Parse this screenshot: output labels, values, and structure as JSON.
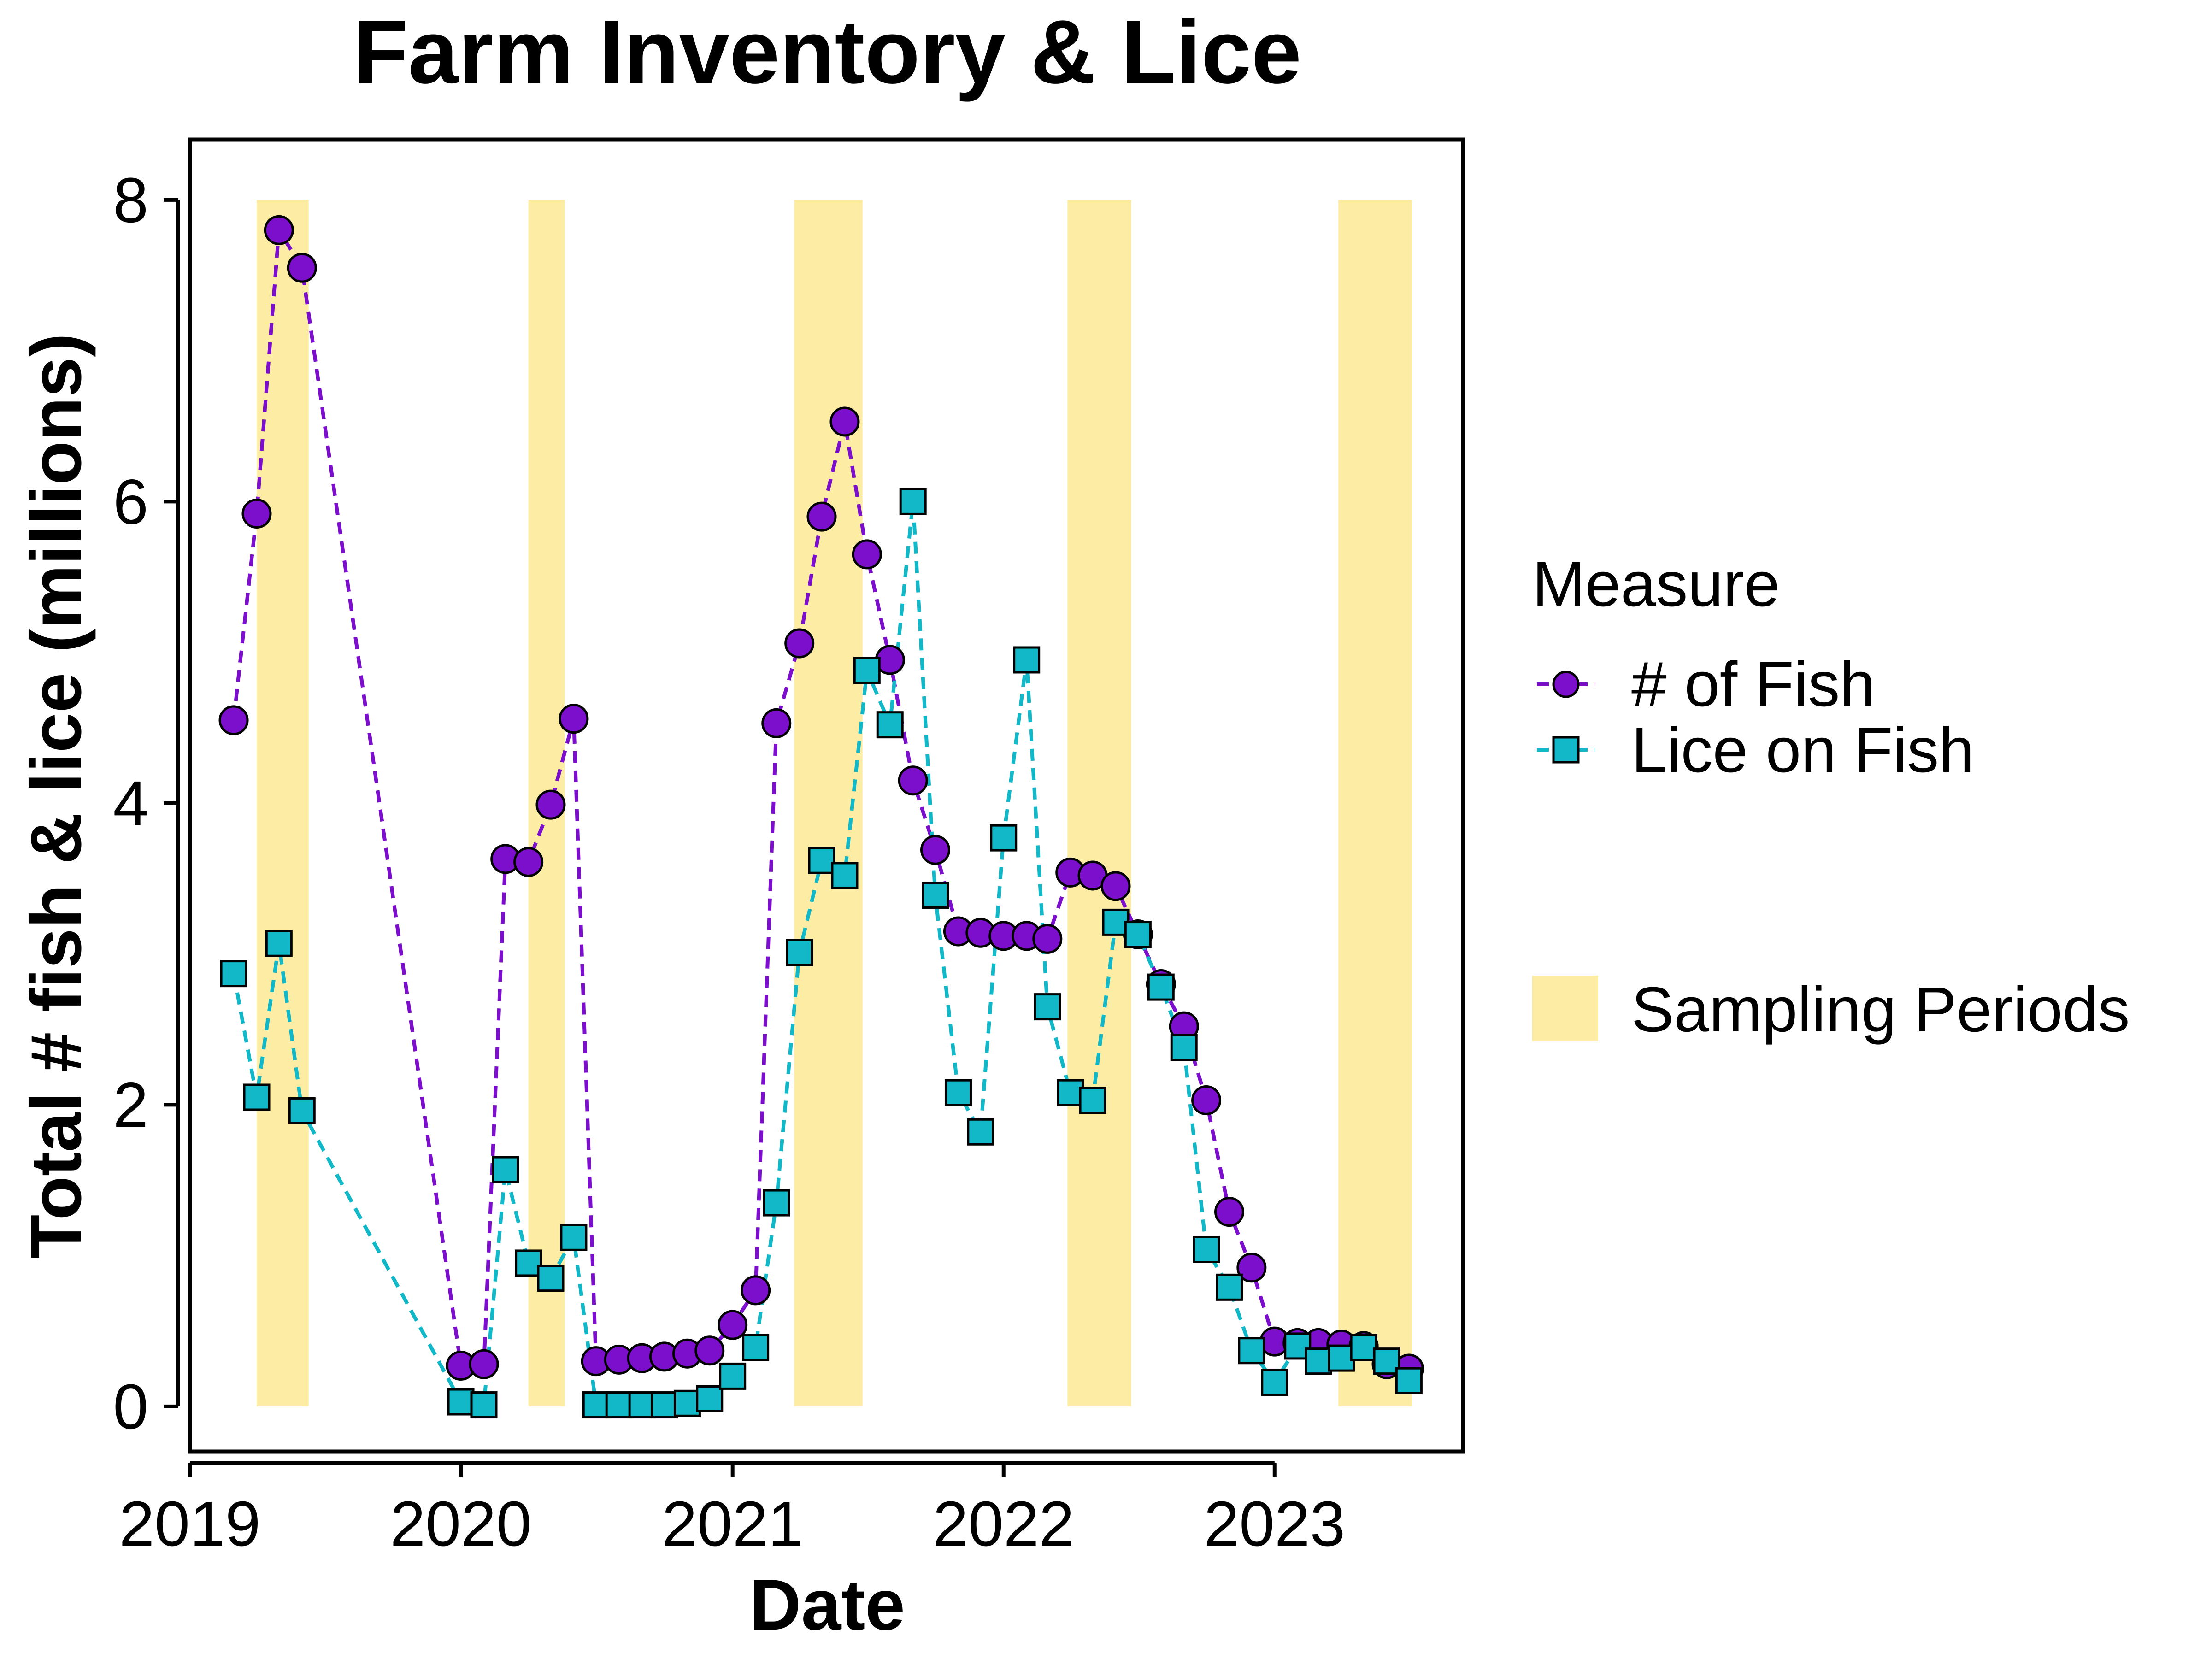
{
  "chart_data": {
    "type": "line",
    "title": "Farm Inventory & Lice",
    "xlabel": "Date",
    "ylabel": "Total # fish & lice (millions)",
    "xlim": [
      "2019-01-01",
      "2023-09-12"
    ],
    "ylim": [
      -0.3,
      8.4
    ],
    "x_ticks": [
      "2019",
      "2020",
      "2021",
      "2022",
      "2023"
    ],
    "y_ticks": [
      0,
      2,
      4,
      6,
      8
    ],
    "grid": false,
    "legend": {
      "position": "right",
      "title": "Measure",
      "band_label": "Sampling Periods"
    },
    "sampling_periods": [
      [
        "2019-04-01",
        "2019-06-10"
      ],
      [
        "2020-04-01",
        "2020-05-20"
      ],
      [
        "2021-03-25",
        "2021-06-25"
      ],
      [
        "2022-03-28",
        "2022-06-22"
      ],
      [
        "2023-03-28",
        "2023-07-05"
      ]
    ],
    "series": [
      {
        "name": "# of Fish",
        "color": "#7B0FCC",
        "marker": "circle",
        "points": [
          [
            "2019-03-01",
            4.55
          ],
          [
            "2019-04-01",
            5.92
          ],
          [
            "2019-05-01",
            7.8
          ],
          [
            "2019-06-01",
            7.55
          ],
          [
            "2020-01-01",
            0.27
          ],
          [
            "2020-02-01",
            0.28
          ],
          [
            "2020-03-01",
            3.63
          ],
          [
            "2020-04-01",
            3.61
          ],
          [
            "2020-05-01",
            3.99
          ],
          [
            "2020-06-01",
            4.56
          ],
          [
            "2020-07-01",
            0.3
          ],
          [
            "2020-08-01",
            0.31
          ],
          [
            "2020-09-01",
            0.32
          ],
          [
            "2020-10-01",
            0.33
          ],
          [
            "2020-11-01",
            0.35
          ],
          [
            "2020-12-01",
            0.37
          ],
          [
            "2021-01-01",
            0.54
          ],
          [
            "2021-02-01",
            0.77
          ],
          [
            "2021-03-01",
            4.53
          ],
          [
            "2021-04-01",
            5.06
          ],
          [
            "2021-05-01",
            5.9
          ],
          [
            "2021-06-01",
            6.53
          ],
          [
            "2021-07-01",
            5.65
          ],
          [
            "2021-08-01",
            4.95
          ],
          [
            "2021-09-01",
            4.15
          ],
          [
            "2021-10-01",
            3.69
          ],
          [
            "2021-11-01",
            3.15
          ],
          [
            "2021-12-01",
            3.14
          ],
          [
            "2022-01-01",
            3.12
          ],
          [
            "2022-02-01",
            3.12
          ],
          [
            "2022-03-01",
            3.1
          ],
          [
            "2022-04-01",
            3.54
          ],
          [
            "2022-05-01",
            3.52
          ],
          [
            "2022-06-01",
            3.45
          ],
          [
            "2022-07-01",
            3.13
          ],
          [
            "2022-08-01",
            2.8
          ],
          [
            "2022-09-01",
            2.52
          ],
          [
            "2022-10-01",
            2.03
          ],
          [
            "2022-11-01",
            1.29
          ],
          [
            "2022-12-01",
            0.92
          ],
          [
            "2023-01-01",
            0.43
          ],
          [
            "2023-02-01",
            0.42
          ],
          [
            "2023-03-01",
            0.42
          ],
          [
            "2023-04-01",
            0.41
          ],
          [
            "2023-05-01",
            0.4
          ],
          [
            "2023-06-01",
            0.28
          ],
          [
            "2023-07-01",
            0.25
          ]
        ]
      },
      {
        "name": "Lice on Fish",
        "color": "#12B8C8",
        "marker": "square",
        "points": [
          [
            "2019-03-01",
            2.87
          ],
          [
            "2019-04-01",
            2.05
          ],
          [
            "2019-05-01",
            3.07
          ],
          [
            "2019-06-01",
            1.96
          ],
          [
            "2020-01-01",
            0.03
          ],
          [
            "2020-02-01",
            0.01
          ],
          [
            "2020-03-01",
            1.57
          ],
          [
            "2020-04-01",
            0.95
          ],
          [
            "2020-05-01",
            0.85
          ],
          [
            "2020-06-01",
            1.12
          ],
          [
            "2020-07-01",
            0.01
          ],
          [
            "2020-08-01",
            0.01
          ],
          [
            "2020-09-01",
            0.01
          ],
          [
            "2020-10-01",
            0.01
          ],
          [
            "2020-11-01",
            0.02
          ],
          [
            "2020-12-01",
            0.05
          ],
          [
            "2021-01-01",
            0.2
          ],
          [
            "2021-02-01",
            0.39
          ],
          [
            "2021-03-01",
            1.35
          ],
          [
            "2021-04-01",
            3.01
          ],
          [
            "2021-05-01",
            3.62
          ],
          [
            "2021-06-01",
            3.52
          ],
          [
            "2021-07-01",
            4.88
          ],
          [
            "2021-08-01",
            4.52
          ],
          [
            "2021-09-01",
            6.0
          ],
          [
            "2021-10-01",
            3.39
          ],
          [
            "2021-11-01",
            2.08
          ],
          [
            "2021-12-01",
            1.82
          ],
          [
            "2022-01-01",
            3.77
          ],
          [
            "2022-02-01",
            4.95
          ],
          [
            "2022-03-01",
            2.65
          ],
          [
            "2022-04-01",
            2.08
          ],
          [
            "2022-05-01",
            2.03
          ],
          [
            "2022-06-01",
            3.21
          ],
          [
            "2022-07-01",
            3.13
          ],
          [
            "2022-08-01",
            2.78
          ],
          [
            "2022-09-01",
            2.38
          ],
          [
            "2022-10-01",
            1.04
          ],
          [
            "2022-11-01",
            0.79
          ],
          [
            "2022-12-01",
            0.37
          ],
          [
            "2023-01-01",
            0.16
          ],
          [
            "2023-02-01",
            0.4
          ],
          [
            "2023-03-01",
            0.3
          ],
          [
            "2023-04-01",
            0.32
          ],
          [
            "2023-05-01",
            0.39
          ],
          [
            "2023-06-01",
            0.3
          ],
          [
            "2023-07-01",
            0.17
          ]
        ]
      }
    ],
    "colors": {
      "band": "#FDECA4",
      "marker_outline": "#000000"
    }
  }
}
